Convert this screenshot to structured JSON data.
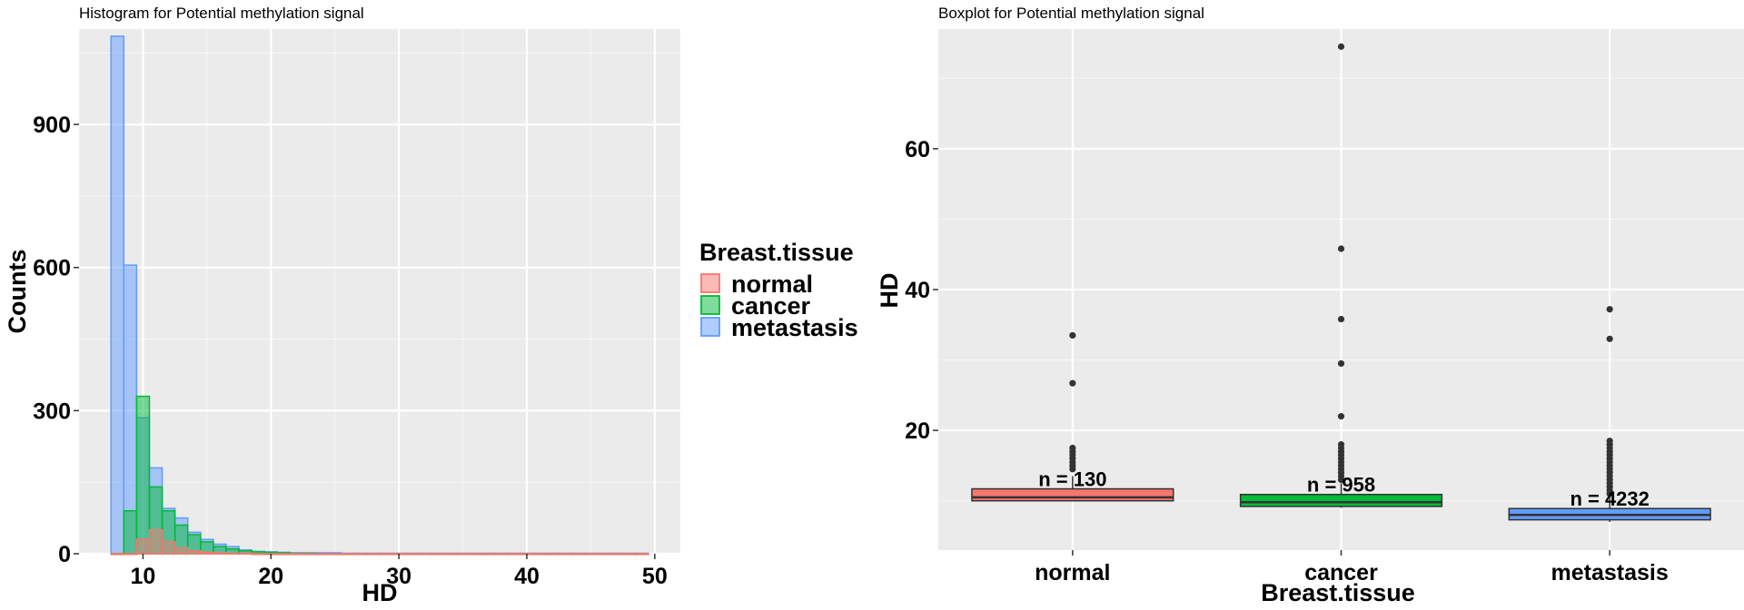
{
  "chart_data": [
    {
      "type": "histogram",
      "title": "Histogram for Potential methylation signal",
      "xlabel": "HD",
      "ylabel": "Counts",
      "xlim": [
        5,
        52
      ],
      "ylim": [
        0,
        1100
      ],
      "x_ticks": [
        10,
        20,
        30,
        40,
        50
      ],
      "y_ticks": [
        0,
        300,
        600,
        900
      ],
      "bin_width": 1,
      "bin_start": 7.5,
      "legend": {
        "title": "Breast.tissue",
        "position": "right",
        "entries": [
          "normal",
          "cancer",
          "metastasis"
        ]
      },
      "series": [
        {
          "name": "metastasis",
          "color": "#619CFF",
          "values": [
            1085,
            605,
            285,
            180,
            95,
            75,
            45,
            30,
            20,
            15,
            8,
            5,
            4,
            3,
            2,
            2,
            2,
            2,
            1,
            1,
            1,
            1,
            1,
            1,
            1,
            1,
            1,
            1,
            1,
            1,
            1,
            1,
            1,
            1,
            1,
            1,
            1,
            1,
            1,
            1,
            1,
            1
          ]
        },
        {
          "name": "cancer",
          "color": "#00BA38",
          "values": [
            0,
            90,
            330,
            140,
            90,
            60,
            40,
            25,
            15,
            10,
            6,
            4,
            3,
            2,
            1,
            1,
            0,
            0,
            0,
            0,
            0,
            0,
            0,
            0,
            0,
            0,
            0,
            0,
            0,
            0,
            0,
            0,
            0,
            0,
            0,
            0,
            0,
            0,
            0,
            0,
            0,
            0
          ]
        },
        {
          "name": "normal",
          "color": "#F8766D",
          "values": [
            0,
            0,
            30,
            50,
            25,
            12,
            6,
            3,
            2,
            1,
            1,
            0,
            0,
            0,
            0,
            0,
            0,
            0,
            0,
            0,
            0,
            0,
            0,
            0,
            0,
            0,
            0,
            0,
            0,
            0,
            0,
            0,
            0,
            0,
            0,
            0,
            0,
            0,
            0,
            0,
            0,
            0
          ]
        }
      ]
    },
    {
      "type": "boxplot",
      "title": "Boxplot for Potential methylation signal",
      "xlabel": "Breast.tissue",
      "ylabel": "HD",
      "categories": [
        "normal",
        "cancer",
        "metastasis"
      ],
      "ylim": [
        3,
        77
      ],
      "y_ticks": [
        20,
        40,
        60
      ],
      "boxes": [
        {
          "name": "normal",
          "color": "#F8766D",
          "q1": 10,
          "median": 10.5,
          "q3": 11.7,
          "whisker_low": 10,
          "whisker_high": 13.5,
          "n_label": "n = 130",
          "outliers": [
            14.5,
            15,
            15.5,
            16,
            16.5,
            17,
            17.5,
            26.7,
            33.5
          ]
        },
        {
          "name": "cancer",
          "color": "#00BA38",
          "q1": 9.2,
          "median": 9.8,
          "q3": 10.9,
          "whisker_low": 9,
          "whisker_high": 12.5,
          "n_label": "n = 958",
          "outliers": [
            13,
            13.5,
            14,
            14.5,
            15,
            15.5,
            16,
            16.5,
            17,
            17.5,
            18,
            22,
            29.5,
            35.8,
            45.8,
            74.5
          ]
        },
        {
          "name": "metastasis",
          "color": "#619CFF",
          "q1": 7.3,
          "median": 8.0,
          "q3": 8.9,
          "whisker_low": 7,
          "whisker_high": 10.8,
          "n_label": "n = 4232",
          "outliers": [
            11,
            11.5,
            12,
            12.5,
            13,
            13.5,
            14,
            14.5,
            15,
            15.5,
            16,
            16.5,
            17,
            17.5,
            18,
            18.5,
            33,
            37.2
          ]
        }
      ]
    }
  ]
}
